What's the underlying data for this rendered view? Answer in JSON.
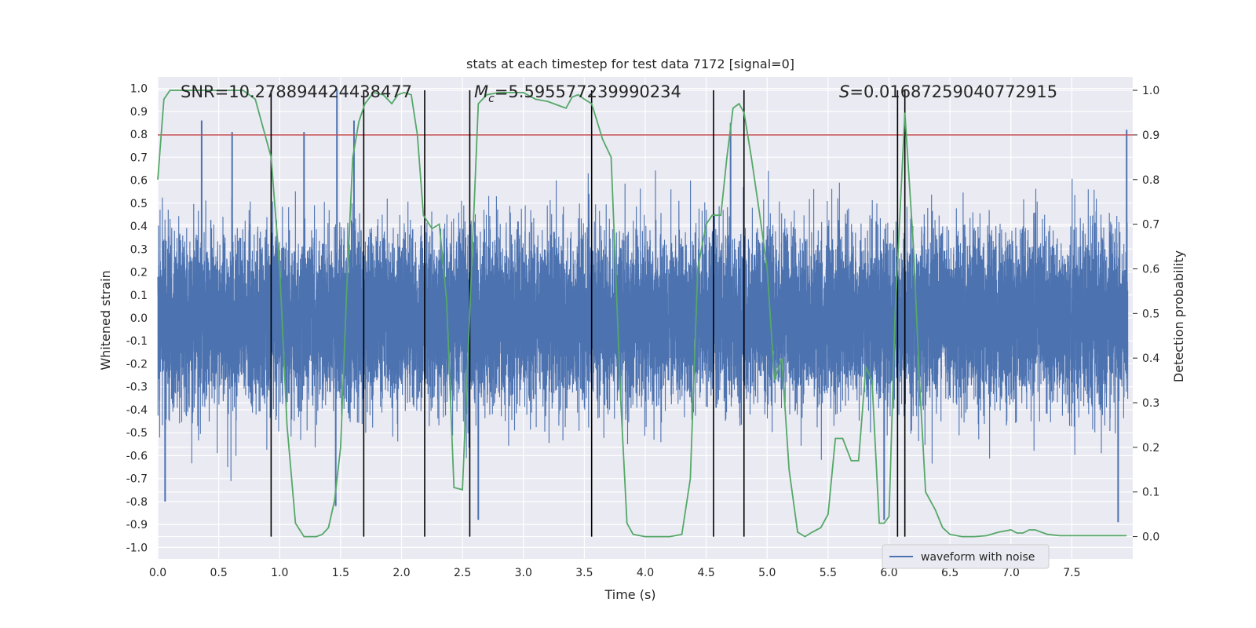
{
  "chart_data": {
    "type": "line",
    "title": "stats at each timestep for test data 7172 [signal=0]",
    "xlabel": "Time (s)",
    "ylabel_left": "Whitened strain",
    "ylabel_right": "Detection probability",
    "xlim": [
      0.0,
      8.0
    ],
    "ylim_left": [
      -1.05,
      1.05
    ],
    "ylim_right": [
      -0.05,
      1.03
    ],
    "x_ticks": [
      "0.0",
      "0.5",
      "1.0",
      "1.5",
      "2.0",
      "2.5",
      "3.0",
      "3.5",
      "4.0",
      "4.5",
      "5.0",
      "5.5",
      "6.0",
      "6.5",
      "7.0",
      "7.5"
    ],
    "y_left_ticks": [
      "-1.0",
      "-0.9",
      "-0.8",
      "-0.7",
      "-0.6",
      "-0.5",
      "-0.4",
      "-0.3",
      "-0.2",
      "-0.1",
      "0.0",
      "0.1",
      "0.2",
      "0.3",
      "0.4",
      "0.5",
      "0.6",
      "0.7",
      "0.8",
      "0.9",
      "1.0"
    ],
    "y_right_ticks": [
      "0.0",
      "0.1",
      "0.2",
      "0.3",
      "0.4",
      "0.5",
      "0.6",
      "0.7",
      "0.8",
      "0.9",
      "1.0"
    ],
    "grid": true,
    "legend": {
      "position": "lower-right",
      "entries": [
        "waveform with noise"
      ]
    },
    "annotations": {
      "snr": "SNR=10.278894424438477",
      "mc_symbol": "M",
      "mc_sub": "c",
      "mc_value": "=5.595577239990234",
      "s_symbol": "S",
      "s_value": "=0.01687259040772915"
    },
    "threshold": {
      "axis": "right",
      "value": 0.9,
      "color": "#c44e52"
    },
    "vertical_lines_x": [
      0.93,
      1.69,
      2.19,
      2.56,
      3.56,
      4.56,
      4.81,
      6.07,
      6.13
    ],
    "series": [
      {
        "name": "waveform with noise",
        "axis": "left",
        "color": "#4c72b0",
        "kind": "noise",
        "sigma": 0.18,
        "max_peak": 1.0,
        "min_trough": -0.91,
        "noted_peaks": [
          {
            "x": 0.36,
            "y": 0.86
          },
          {
            "x": 0.61,
            "y": 0.81
          },
          {
            "x": 1.2,
            "y": 0.81
          },
          {
            "x": 1.47,
            "y": 1.0
          },
          {
            "x": 1.61,
            "y": 0.86
          },
          {
            "x": 4.7,
            "y": 0.85
          },
          {
            "x": 7.95,
            "y": 0.82
          },
          {
            "x": 0.06,
            "y": -0.8
          },
          {
            "x": 1.46,
            "y": -0.82
          },
          {
            "x": 2.63,
            "y": -0.88
          },
          {
            "x": 5.96,
            "y": -0.88
          },
          {
            "x": 7.88,
            "y": -0.89
          }
        ]
      },
      {
        "name": "",
        "axis": "right",
        "color": "#55a868",
        "x": [
          0.0,
          0.05,
          0.1,
          0.2,
          0.3,
          0.4,
          0.5,
          0.6,
          0.7,
          0.8,
          0.87,
          0.93,
          1.0,
          1.06,
          1.13,
          1.2,
          1.3,
          1.35,
          1.4,
          1.45,
          1.5,
          1.55,
          1.6,
          1.65,
          1.7,
          1.77,
          1.85,
          1.92,
          1.97,
          2.02,
          2.08,
          2.13,
          2.18,
          2.25,
          2.31,
          2.37,
          2.43,
          2.5,
          2.56,
          2.63,
          2.7,
          2.8,
          3.0,
          3.1,
          3.2,
          3.3,
          3.35,
          3.4,
          3.45,
          3.5,
          3.56,
          3.65,
          3.72,
          3.8,
          3.85,
          3.9,
          4.0,
          4.1,
          4.2,
          4.3,
          4.37,
          4.43,
          4.5,
          4.55,
          4.62,
          4.67,
          4.72,
          4.77,
          4.81,
          4.87,
          4.94,
          5.0,
          5.06,
          5.12,
          5.18,
          5.25,
          5.31,
          5.37,
          5.44,
          5.5,
          5.56,
          5.62,
          5.69,
          5.75,
          5.81,
          5.86,
          5.92,
          5.96,
          6.0,
          6.05,
          6.13,
          6.2,
          6.25,
          6.3,
          6.38,
          6.44,
          6.5,
          6.6,
          6.7,
          6.8,
          6.9,
          7.0,
          7.05,
          7.1,
          7.15,
          7.2,
          7.3,
          7.4,
          7.5,
          7.6,
          7.7,
          7.8,
          7.9,
          7.95
        ],
        "y": [
          0.8,
          0.98,
          1.0,
          1.0,
          1.0,
          1.0,
          1.0,
          1.0,
          1.0,
          0.98,
          0.91,
          0.85,
          0.6,
          0.25,
          0.03,
          0.0,
          0.0,
          0.005,
          0.02,
          0.08,
          0.2,
          0.55,
          0.85,
          0.93,
          0.97,
          0.995,
          0.99,
          0.97,
          0.99,
          0.995,
          0.99,
          0.9,
          0.72,
          0.69,
          0.7,
          0.53,
          0.11,
          0.105,
          0.5,
          0.97,
          0.99,
          0.995,
          0.995,
          0.98,
          0.975,
          0.965,
          0.96,
          0.985,
          0.99,
          0.98,
          0.97,
          0.89,
          0.85,
          0.3,
          0.03,
          0.005,
          0.0,
          0.0,
          0.0,
          0.005,
          0.13,
          0.6,
          0.7,
          0.72,
          0.72,
          0.85,
          0.96,
          0.97,
          0.95,
          0.85,
          0.72,
          0.6,
          0.35,
          0.4,
          0.15,
          0.01,
          0.0,
          0.01,
          0.02,
          0.05,
          0.22,
          0.22,
          0.17,
          0.17,
          0.38,
          0.35,
          0.03,
          0.03,
          0.045,
          0.5,
          0.95,
          0.65,
          0.35,
          0.1,
          0.06,
          0.02,
          0.005,
          0.0,
          0.0,
          0.002,
          0.01,
          0.015,
          0.008,
          0.008,
          0.015,
          0.015,
          0.005,
          0.002,
          0.002,
          0.002,
          0.002,
          0.002,
          0.002,
          0.002
        ]
      }
    ]
  }
}
